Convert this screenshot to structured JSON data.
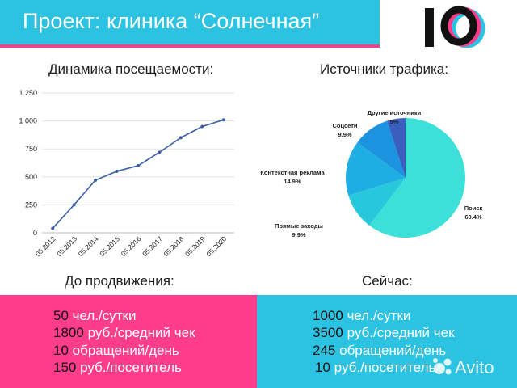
{
  "header": {
    "title": "Проект: клиника “Солнечная”",
    "logo_text": "10"
  },
  "line_section": {
    "title": "Динамика посещаемости:"
  },
  "pie_section": {
    "title": "Источники трафика:"
  },
  "chart_data": [
    {
      "type": "line",
      "title": "Динамика посещаемости:",
      "x": [
        "05.2012",
        "05.2013",
        "05.2014",
        "05.2015",
        "05.2016",
        "05.2017",
        "05.2018",
        "05.2019",
        "05.2020"
      ],
      "values": [
        40,
        250,
        470,
        550,
        600,
        720,
        850,
        950,
        1010
      ],
      "yticks": [
        "0",
        "250",
        "500",
        "750",
        "1 000",
        "1 250"
      ],
      "ylim": [
        0,
        1250
      ],
      "grid": true,
      "color": "#3a5fa8"
    },
    {
      "type": "pie",
      "title": "Источники трафика:",
      "slices": [
        {
          "label": "Поиск",
          "value": 60.4,
          "display": "60.4%",
          "color": "#3de0d8"
        },
        {
          "label": "Прямые заходы",
          "value": 9.9,
          "display": "9.9%",
          "color": "#27c8dc"
        },
        {
          "label": "Контекстная реклама",
          "value": 14.9,
          "display": "14.9%",
          "color": "#1faee4"
        },
        {
          "label": "Соцсети",
          "value": 9.9,
          "display": "9.9%",
          "color": "#1b93de"
        },
        {
          "label": "Другие источники",
          "value": 5,
          "display": "5%",
          "color": "#3a5fbf"
        }
      ]
    }
  ],
  "before": {
    "title": "До продвижения:",
    "metrics": [
      {
        "num": "50",
        "unit": "чел./сутки"
      },
      {
        "num": "1800",
        "unit": "руб./средний чек"
      },
      {
        "num": "10",
        "unit": "обращений/день"
      },
      {
        "num": "150",
        "unit": "руб./посетитель"
      }
    ]
  },
  "now": {
    "title": "Сейчас:",
    "metrics": [
      {
        "num": "1000",
        "unit": "чел./сутки"
      },
      {
        "num": "3500",
        "unit": "руб./средний чек"
      },
      {
        "num": "245",
        "unit": "обращений/день"
      },
      {
        "num": "10",
        "unit": "руб./посетитель"
      }
    ]
  },
  "watermark": {
    "text": "Avito"
  },
  "colors": {
    "cyan": "#2cc3e2",
    "pink": "#ff3d8b",
    "navy": "#3a5fa8"
  }
}
